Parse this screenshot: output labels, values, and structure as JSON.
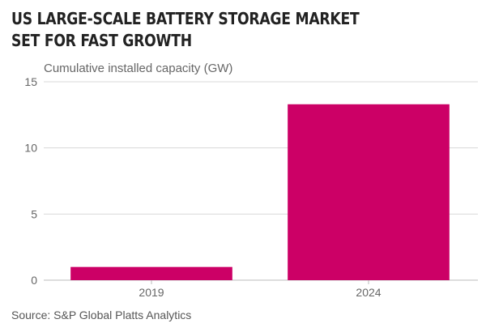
{
  "title_lines": [
    "US LARGE-SCALE BATTERY STORAGE MARKET",
    "SET FOR FAST GROWTH"
  ],
  "source": "Source: S&P Global Platts Analytics",
  "colors": {
    "bar": "#cc0066",
    "grid": "#d8d8d8",
    "text": "#222222"
  },
  "chart_data": {
    "type": "bar",
    "title": "US LARGE-SCALE BATTERY STORAGE MARKET SET FOR FAST GROWTH",
    "ylabel": "Cumulative installed capacity (GW)",
    "xlabel": "",
    "categories": [
      "2019",
      "2024"
    ],
    "series": [
      {
        "values": [
          1.0,
          13.3
        ]
      }
    ],
    "ylim": [
      0,
      15
    ],
    "yticks": [
      0,
      5,
      10,
      15
    ],
    "grid": true
  }
}
